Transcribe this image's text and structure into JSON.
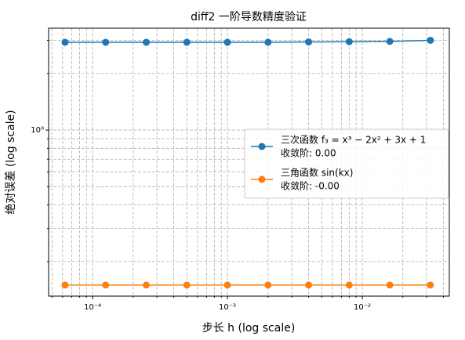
{
  "chart_data": {
    "type": "line",
    "title": "diff2 一阶导数精度验证",
    "xlabel": "步长 h (log scale)",
    "ylabel": "绝对误差 (log scale)",
    "xscale": "log",
    "yscale": "log",
    "grid": true,
    "legend": "center right",
    "x": [
      6.25e-05,
      0.000125,
      0.00025,
      0.0005,
      0.001,
      0.002,
      0.004,
      0.008,
      0.016,
      0.032
    ],
    "series": [
      {
        "name": "三次函数 f₃ = x³ − 2x² + 3x + 1",
        "note": "收敛阶: 0.00",
        "color": "#1f77b4",
        "values": [
          2.93,
          2.93,
          2.93,
          2.93,
          2.93,
          2.93,
          2.94,
          2.95,
          2.96,
          3.0
        ]
      },
      {
        "name": "三角函数 sin(kx)",
        "note": "收敛阶: -0.00",
        "color": "#ff7f0e",
        "values": [
          0.15,
          0.15,
          0.15,
          0.15,
          0.15,
          0.15,
          0.15,
          0.15,
          0.15,
          0.15
        ]
      }
    ],
    "xlim": [
      4.72e-05,
      0.0442
    ],
    "ylim": [
      0.131,
      3.48
    ],
    "xticks": [
      {
        "value": 0.0001,
        "label": "10⁻⁴"
      },
      {
        "value": 0.001,
        "label": "10⁻³"
      },
      {
        "value": 0.01,
        "label": "10⁻²"
      }
    ],
    "yticks": [
      {
        "value": 1,
        "label": "10⁰"
      }
    ],
    "xminorticks": [
      5e-05,
      6e-05,
      7e-05,
      8e-05,
      9e-05,
      0.0002,
      0.0003,
      0.0004,
      0.0005,
      0.0006,
      0.0007,
      0.0008,
      0.0009,
      0.002,
      0.003,
      0.004,
      0.005,
      0.006,
      0.007,
      0.008,
      0.009,
      0.02,
      0.03,
      0.04
    ],
    "yminorticks": [
      0.2,
      0.3,
      0.4,
      0.5,
      0.6,
      0.7,
      0.8,
      0.9,
      2,
      3
    ]
  }
}
